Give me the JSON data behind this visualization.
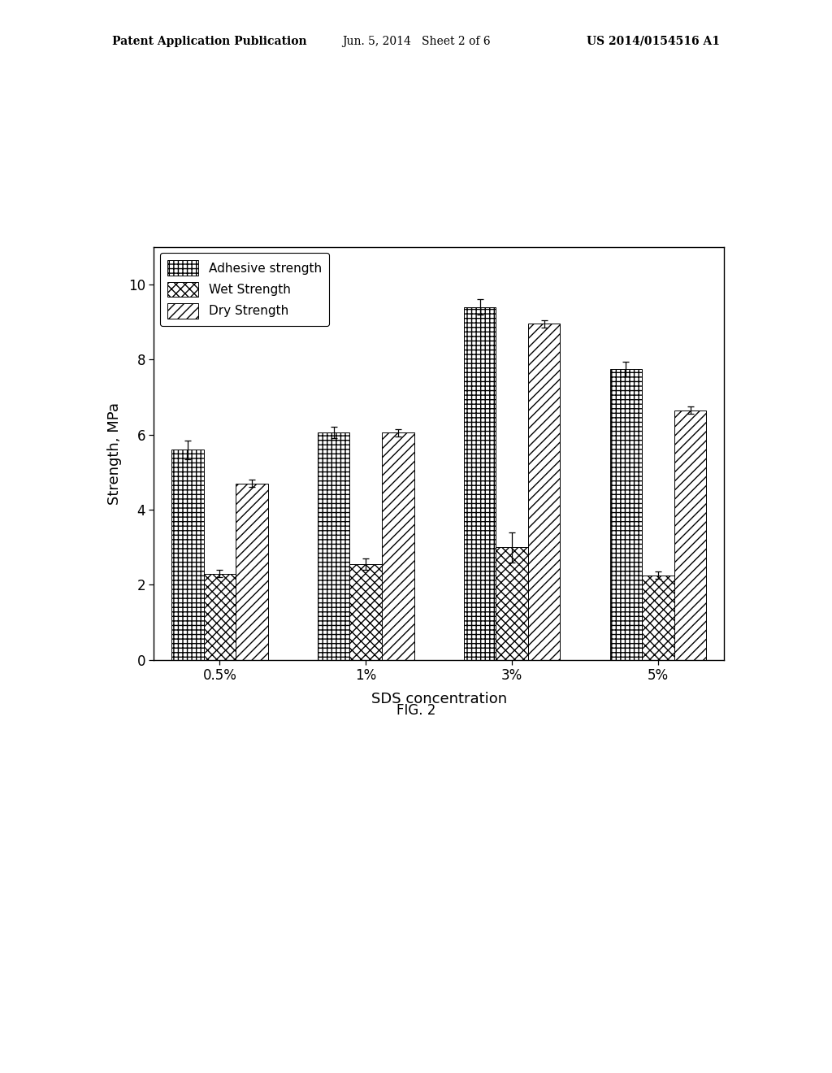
{
  "categories": [
    "0.5%",
    "1%",
    "3%",
    "5%"
  ],
  "adhesive_strength": [
    5.6,
    6.05,
    9.4,
    7.75
  ],
  "wet_strength": [
    2.3,
    2.55,
    3.0,
    2.25
  ],
  "dry_strength": [
    4.7,
    6.05,
    8.95,
    6.65
  ],
  "adhesive_err": [
    0.25,
    0.15,
    0.2,
    0.2
  ],
  "wet_err": [
    0.1,
    0.15,
    0.4,
    0.1
  ],
  "dry_err": [
    0.1,
    0.1,
    0.1,
    0.1
  ],
  "xlabel": "SDS concentration",
  "ylabel": "Strength, MPa",
  "ylim": [
    0,
    11
  ],
  "yticks": [
    0,
    2,
    4,
    6,
    8,
    10
  ],
  "legend_labels": [
    "Adhesive strength",
    "Wet Strength",
    "Dry Strength"
  ],
  "fig_label": "FIG. 2",
  "header_left": "Patent Application Publication",
  "header_center": "Jun. 5, 2014   Sheet 2 of 6",
  "header_right": "US 2014/0154516 A1",
  "bar_width": 0.22,
  "background_color": "#ffffff",
  "bar_edge_color": "#000000",
  "error_color": "#000000",
  "text_color": "#000000"
}
